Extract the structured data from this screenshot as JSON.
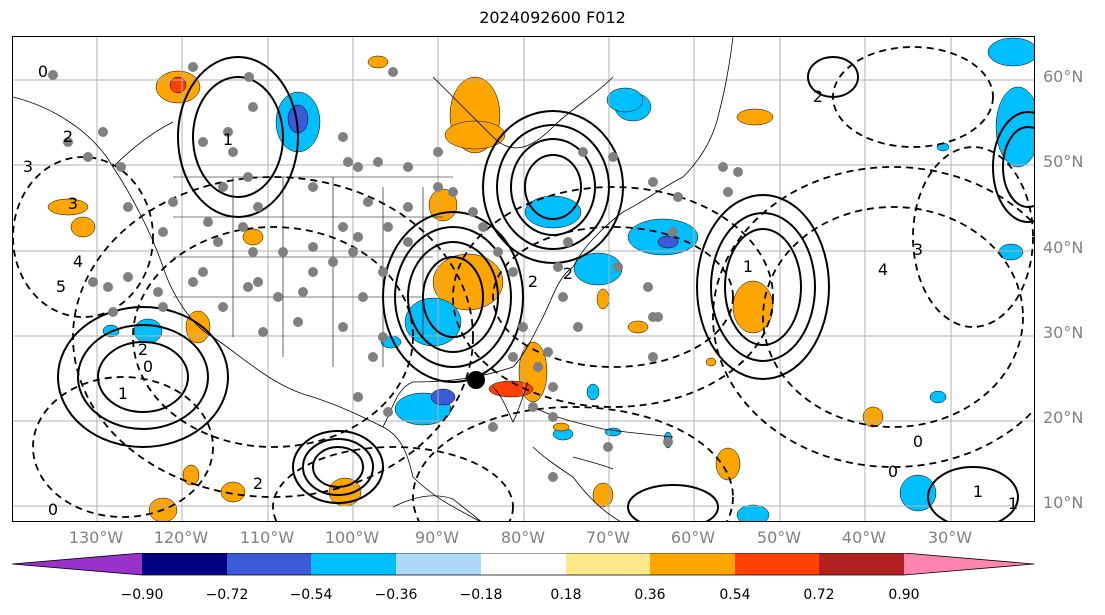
{
  "title": "2024092600 F012",
  "lat_labels": [
    "60°N",
    "50°N",
    "40°N",
    "30°N",
    "20°N",
    "10°N"
  ],
  "lon_labels": [
    "130°W",
    "120°W",
    "110°W",
    "100°W",
    "90°W",
    "80°W",
    "70°W",
    "60°W",
    "50°W",
    "40°W",
    "30°W"
  ],
  "colorbar": {
    "ticks": [
      "−0.90",
      "−0.72",
      "−0.54",
      "−0.36",
      "−0.18",
      "0.18",
      "0.36",
      "0.54",
      "0.72",
      "0.90"
    ],
    "colors": [
      "#9932cc",
      "#000080",
      "#3b5bd6",
      "#00bfff",
      "#add8f7",
      "#ffffff",
      "#fde88a",
      "#ffa500",
      "#ff4000",
      "#b22222",
      "#ff85b0"
    ]
  },
  "contour_labels": [
    "0",
    "2",
    "3",
    "4",
    "5",
    "2",
    "1",
    "0",
    "3",
    "1",
    "2",
    "2",
    "1",
    "4",
    "3",
    "2",
    "0",
    "2",
    "1",
    "1",
    "0",
    "0"
  ],
  "colors": {
    "text": "#000000",
    "axis_label": "#808080",
    "grid": "#b0b0b0",
    "orange": "#ffa500",
    "blue": "#00bfff"
  }
}
